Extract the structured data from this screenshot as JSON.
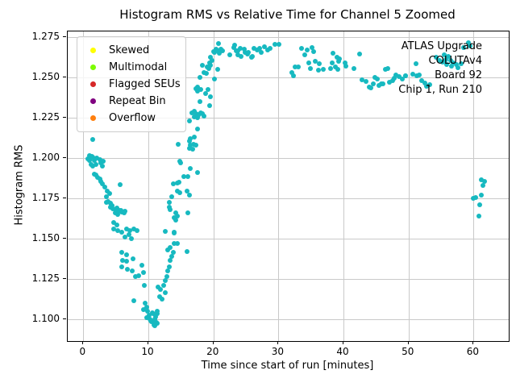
{
  "title": "Histogram RMS vs Relative Time for Channel 5 Zoomed",
  "chart_data": {
    "type": "scatter",
    "title": "Histogram RMS vs Relative Time for Channel 5 Zoomed",
    "xlabel": "Time since start of run [minutes]",
    "ylabel": "Histogram RMS",
    "xlim": [
      -2.4,
      65.4
    ],
    "ylim": [
      1.0865,
      1.2785
    ],
    "x_ticks": [
      0,
      10,
      20,
      30,
      40,
      50,
      60
    ],
    "y_ticks": [
      1.1,
      1.125,
      1.15,
      1.175,
      1.2,
      1.225,
      1.25,
      1.275
    ],
    "grid": true,
    "grid_color": "#c9c9c9",
    "marker_color": "#17b9c0",
    "legend": {
      "position": "upper-left",
      "entries": [
        {
          "label": "Skewed",
          "color": "#ffff00"
        },
        {
          "label": "Multimodal",
          "color": "#7cfc00"
        },
        {
          "label": "Flagged SEUs",
          "color": "#d62728"
        },
        {
          "label": "Repeat Bin",
          "color": "#800080"
        },
        {
          "label": "Overflow",
          "color": "#ff7f0e"
        }
      ]
    },
    "annotation": {
      "align": "right",
      "lines": [
        "ATLAS Upgrade",
        "COLUTAv4",
        "Board 92",
        "Chip 1, Run 210"
      ]
    },
    "series": [
      {
        "name": "Channel 5",
        "color": "#17b9c0",
        "points": [
          [
            0.7,
            1.1995
          ],
          [
            0.9,
            1.2015
          ],
          [
            1.0,
            1.1985
          ],
          [
            1.1,
            1.2
          ],
          [
            1.2,
            1.196
          ],
          [
            1.3,
            1.201
          ],
          [
            1.4,
            1.2113
          ],
          [
            1.5,
            1.2005
          ],
          [
            1.5,
            1.195
          ],
          [
            1.7,
            1.1985
          ],
          [
            1.7,
            1.19
          ],
          [
            1.9,
            1.196
          ],
          [
            1.9,
            1.1895
          ],
          [
            2.1,
            1.2
          ],
          [
            2.2,
            1.188
          ],
          [
            2.5,
            1.199
          ],
          [
            2.5,
            1.187
          ],
          [
            2.7,
            1.197
          ],
          [
            2.7,
            1.1855
          ],
          [
            2.9,
            1.195
          ],
          [
            2.9,
            1.184
          ],
          [
            3.1,
            1.198
          ],
          [
            3.3,
            1.182
          ],
          [
            3.5,
            1.176
          ],
          [
            3.6,
            1.1725
          ],
          [
            3.7,
            1.1795
          ],
          [
            3.8,
            1.173
          ],
          [
            4.0,
            1.178
          ],
          [
            4.2,
            1.172
          ],
          [
            4.2,
            1.1695
          ],
          [
            4.4,
            1.1705
          ],
          [
            4.6,
            1.1685
          ],
          [
            4.7,
            1.16
          ],
          [
            4.7,
            1.1558
          ],
          [
            4.9,
            1.1658
          ],
          [
            5.0,
            1.1677
          ],
          [
            5.1,
            1.1692
          ],
          [
            5.1,
            1.1583
          ],
          [
            5.3,
            1.165
          ],
          [
            5.3,
            1.155
          ],
          [
            5.4,
            1.1668
          ],
          [
            5.5,
            1.1675
          ],
          [
            5.6,
            1.1835
          ],
          [
            5.8,
            1.1677
          ],
          [
            5.9,
            1.1667
          ],
          [
            5.9,
            1.1542
          ],
          [
            6.3,
            1.1658
          ],
          [
            6.4,
            1.1668
          ],
          [
            6.4,
            1.1508
          ],
          [
            6.6,
            1.1558
          ],
          [
            7.0,
            1.1525
          ],
          [
            7.2,
            1.155
          ],
          [
            7.4,
            1.15
          ],
          [
            7.8,
            1.1558
          ],
          [
            8.2,
            1.155
          ],
          [
            5.9,
            1.1417
          ],
          [
            6.6,
            1.14
          ],
          [
            6.0,
            1.1367
          ],
          [
            6.7,
            1.1358
          ],
          [
            7.6,
            1.1375
          ],
          [
            5.9,
            1.1325
          ],
          [
            6.8,
            1.1308
          ],
          [
            7.5,
            1.13
          ],
          [
            8.0,
            1.1267
          ],
          [
            9.0,
            1.1333
          ],
          [
            7.8,
            1.1117
          ],
          [
            8.5,
            1.127
          ],
          [
            9.3,
            1.1292
          ],
          [
            9.4,
            1.121
          ],
          [
            9.5,
            1.11
          ],
          [
            9.7,
            1.1075
          ],
          [
            9.3,
            1.1058
          ],
          [
            9.9,
            1.105
          ],
          [
            10.1,
            1.1025
          ],
          [
            9.8,
            1.1008
          ],
          [
            10.3,
            1.1
          ],
          [
            10.5,
            1.0983
          ],
          [
            10.9,
            1.0992
          ],
          [
            10.7,
            1.1033
          ],
          [
            10.9,
            1.0967
          ],
          [
            11.0,
            1.096
          ],
          [
            11.1,
            1.1017
          ],
          [
            11.2,
            1.098
          ],
          [
            11.3,
            1.1033
          ],
          [
            11.3,
            1.0975
          ],
          [
            11.0,
            1.1
          ],
          [
            11.1,
            1.103
          ],
          [
            10.4,
            1.099
          ],
          [
            10.6,
            1.104
          ],
          [
            11.4,
            1.105
          ],
          [
            11.5,
            1.12
          ],
          [
            11.7,
            1.1142
          ],
          [
            11.9,
            1.1183
          ],
          [
            12.1,
            1.1125
          ],
          [
            12.4,
            1.1208
          ],
          [
            12.6,
            1.1167
          ],
          [
            12.6,
            1.1242
          ],
          [
            12.8,
            1.1267
          ],
          [
            13.0,
            1.13
          ],
          [
            13.2,
            1.1325
          ],
          [
            13.4,
            1.1367
          ],
          [
            13.6,
            1.1392
          ],
          [
            13.8,
            1.1417
          ],
          [
            13.0,
            1.1428
          ],
          [
            13.4,
            1.1445
          ],
          [
            14.0,
            1.147
          ],
          [
            14.4,
            1.147
          ],
          [
            12.6,
            1.1545
          ],
          [
            14.0,
            1.1537
          ],
          [
            13.2,
            1.1695
          ],
          [
            13.4,
            1.1682
          ],
          [
            14.2,
            1.1662
          ],
          [
            14.0,
            1.1629
          ],
          [
            16.1,
            1.1662
          ],
          [
            13.2,
            1.1725
          ],
          [
            13.6,
            1.1758
          ],
          [
            14.2,
            1.1617
          ],
          [
            14.4,
            1.1642
          ],
          [
            13.9,
            1.1542
          ],
          [
            15.9,
            1.1422
          ],
          [
            14.4,
            1.1845
          ],
          [
            13.8,
            1.1842
          ],
          [
            14.7,
            1.1849
          ],
          [
            14.5,
            1.1795
          ],
          [
            14.8,
            1.1787
          ],
          [
            15.9,
            1.1795
          ],
          [
            16.3,
            1.177
          ],
          [
            15.5,
            1.1887
          ],
          [
            16.1,
            1.1887
          ],
          [
            14.8,
            1.1979
          ],
          [
            15.0,
            1.197
          ],
          [
            16.4,
            1.1937
          ],
          [
            17.5,
            1.1912
          ],
          [
            16.5,
            1.212
          ],
          [
            17.1,
            1.2129
          ],
          [
            16.3,
            1.2104
          ],
          [
            16.5,
            1.2079
          ],
          [
            16.9,
            1.2087
          ],
          [
            17.3,
            1.2082
          ],
          [
            16.3,
            1.2062
          ],
          [
            16.8,
            1.2054
          ],
          [
            14.6,
            1.2087
          ],
          [
            17.5,
            1.2179
          ],
          [
            16.3,
            1.2228
          ],
          [
            17.5,
            1.227
          ],
          [
            18.1,
            1.228
          ],
          [
            18.6,
            1.2262
          ],
          [
            16.7,
            1.2281
          ],
          [
            17.0,
            1.2256
          ],
          [
            17.1,
            1.2289
          ],
          [
            17.3,
            1.2273
          ],
          [
            17.5,
            1.2248
          ],
          [
            17.7,
            1.2264
          ],
          [
            18.3,
            1.2273
          ],
          [
            17.3,
            1.2431
          ],
          [
            17.6,
            1.2439
          ],
          [
            17.6,
            1.2414
          ],
          [
            17.9,
            1.2348
          ],
          [
            18.1,
            1.2423
          ],
          [
            17.9,
            1.2498
          ],
          [
            18.3,
            1.2573
          ],
          [
            18.6,
            1.2531
          ],
          [
            18.8,
            1.2398
          ],
          [
            18.9,
            1.2523
          ],
          [
            19.2,
            1.2423
          ],
          [
            19.4,
            1.2323
          ],
          [
            19.4,
            1.2589
          ],
          [
            19.6,
            1.2623
          ],
          [
            19.6,
            1.2381
          ],
          [
            19.8,
            1.2606
          ],
          [
            19.0,
            1.2564
          ],
          [
            19.3,
            1.2556
          ],
          [
            19.6,
            1.2573
          ],
          [
            20.2,
            1.2489
          ],
          [
            20.6,
            1.2548
          ],
          [
            20.0,
            1.2659
          ],
          [
            20.2,
            1.2656
          ],
          [
            20.4,
            1.2673
          ],
          [
            20.6,
            1.2664
          ],
          [
            20.8,
            1.2709
          ],
          [
            20.9,
            1.2648
          ],
          [
            21.1,
            1.2676
          ],
          [
            21.4,
            1.2664
          ],
          [
            22.5,
            1.2639
          ],
          [
            23.1,
            1.2684
          ],
          [
            23.2,
            1.2698
          ],
          [
            23.5,
            1.2664
          ],
          [
            23.7,
            1.2664
          ],
          [
            23.8,
            1.2639
          ],
          [
            24.1,
            1.2681
          ],
          [
            24.3,
            1.2631
          ],
          [
            24.8,
            1.2673
          ],
          [
            24.9,
            1.2656
          ],
          [
            25.3,
            1.2644
          ],
          [
            25.4,
            1.2656
          ],
          [
            25.8,
            1.2623
          ],
          [
            26.0,
            1.2631
          ],
          [
            26.2,
            1.2681
          ],
          [
            26.7,
            1.2668
          ],
          [
            27.1,
            1.2678
          ],
          [
            27.4,
            1.2656
          ],
          [
            27.8,
            1.2691
          ],
          [
            28.3,
            1.2671
          ],
          [
            28.7,
            1.2681
          ],
          [
            29.4,
            1.2704
          ],
          [
            30.1,
            1.2704
          ],
          [
            32.0,
            1.253
          ],
          [
            32.3,
            1.251
          ],
          [
            32.6,
            1.2563
          ],
          [
            33.1,
            1.2567
          ],
          [
            33.5,
            1.2681
          ],
          [
            34.0,
            1.2639
          ],
          [
            34.4,
            1.2668
          ],
          [
            34.7,
            1.2589
          ],
          [
            34.9,
            1.2556
          ],
          [
            35.1,
            1.2684
          ],
          [
            35.4,
            1.2661
          ],
          [
            35.7,
            1.2601
          ],
          [
            36.1,
            1.2547
          ],
          [
            36.3,
            1.2584
          ],
          [
            36.9,
            1.255
          ],
          [
            38.0,
            1.2553
          ],
          [
            38.2,
            1.2592
          ],
          [
            38.4,
            1.265
          ],
          [
            38.7,
            1.2563
          ],
          [
            39.0,
            1.2625
          ],
          [
            39.1,
            1.255
          ],
          [
            39.2,
            1.26
          ],
          [
            39.4,
            1.2613
          ],
          [
            40.2,
            1.2592
          ],
          [
            40.4,
            1.257
          ],
          [
            41.6,
            1.2553
          ],
          [
            42.5,
            1.2647
          ],
          [
            42.8,
            1.2483
          ],
          [
            43.5,
            1.2475
          ],
          [
            44.0,
            1.2441
          ],
          [
            44.2,
            1.2433
          ],
          [
            44.6,
            1.2458
          ],
          [
            44.8,
            1.25
          ],
          [
            45.2,
            1.2491
          ],
          [
            45.5,
            1.245
          ],
          [
            45.8,
            1.2458
          ],
          [
            46.1,
            1.2461
          ],
          [
            46.4,
            1.255
          ],
          [
            46.8,
            1.2553
          ],
          [
            47.1,
            1.2469
          ],
          [
            47.5,
            1.2479
          ],
          [
            47.8,
            1.2497
          ],
          [
            48.1,
            1.2517
          ],
          [
            48.6,
            1.2503
          ],
          [
            49.1,
            1.2491
          ],
          [
            49.5,
            1.2508
          ],
          [
            49.5,
            1.251
          ],
          [
            50.6,
            1.2522
          ],
          [
            51.1,
            1.2584
          ],
          [
            51.3,
            1.251
          ],
          [
            51.6,
            1.2517
          ],
          [
            52.0,
            1.248
          ],
          [
            52.5,
            1.2467
          ],
          [
            52.8,
            1.2447
          ],
          [
            53.2,
            1.2455
          ],
          [
            54.2,
            1.2627
          ],
          [
            54.7,
            1.2605
          ],
          [
            55.2,
            1.2597
          ],
          [
            55.5,
            1.264
          ],
          [
            55.7,
            1.2612
          ],
          [
            55.9,
            1.2578
          ],
          [
            56.1,
            1.2628
          ],
          [
            56.5,
            1.2603
          ],
          [
            56.6,
            1.257
          ],
          [
            56.9,
            1.259
          ],
          [
            57.3,
            1.2578
          ],
          [
            57.6,
            1.2562
          ],
          [
            58.1,
            1.2584
          ],
          [
            58.4,
            1.2687
          ],
          [
            59.2,
            1.2717
          ],
          [
            59.5,
            1.2695
          ],
          [
            59.9,
            1.1748
          ],
          [
            60.3,
            1.1757
          ],
          [
            60.8,
            1.1642
          ],
          [
            60.9,
            1.1708
          ],
          [
            61.2,
            1.1865
          ],
          [
            61.2,
            1.1769
          ],
          [
            61.4,
            1.1832
          ],
          [
            61.7,
            1.1857
          ]
        ]
      }
    ]
  }
}
